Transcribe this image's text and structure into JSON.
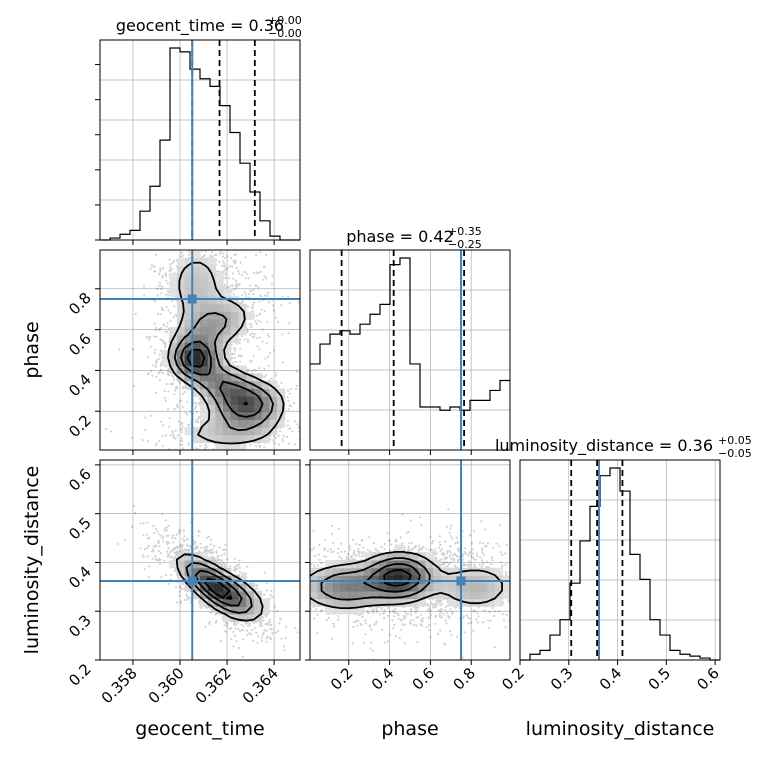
{
  "colors": {
    "truth": "#4682b4",
    "hist": "#000000",
    "quantile": "#000000",
    "grid": "#b0b0b0",
    "scatter": "#000000"
  },
  "chart_data": {
    "type": "corner",
    "parameters": [
      "geocent_time",
      "phase",
      "luminosity_distance"
    ],
    "axis_labels": [
      "geocent_time",
      "phase",
      "luminosity_distance"
    ],
    "titles": [
      {
        "param": "geocent_time",
        "prefix": "geocent_time = ",
        "value": "0.36",
        "up": "+0.00",
        "down": "−0.00"
      },
      {
        "param": "phase",
        "prefix": "phase = ",
        "value": "0.42",
        "up": "+0.35",
        "down": "−0.25"
      },
      {
        "param": "luminosity_distance",
        "prefix": "luminosity_distance = ",
        "value": "0.36",
        "up": "+0.05",
        "down": "−0.05"
      }
    ],
    "ranges": {
      "geocent_time": [
        0.3566,
        0.3651
      ],
      "phase": [
        0.01,
        0.99
      ],
      "luminosity_distance": [
        0.2,
        0.61
      ]
    },
    "ticks": {
      "geocent_time": {
        "values": [
          0.358,
          0.36,
          0.362,
          0.364
        ],
        "labels": [
          "0.358",
          "0.360",
          "0.362",
          "0.364"
        ]
      },
      "phase": {
        "values": [
          0.2,
          0.4,
          0.6,
          0.8
        ],
        "labels": [
          "0.2",
          "0.4",
          "0.6",
          "0.8"
        ]
      },
      "luminosity_distance": {
        "values": [
          0.2,
          0.3,
          0.4,
          0.5,
          0.6
        ],
        "labels": [
          "0.2",
          "0.3",
          "0.4",
          "0.5",
          "0.6"
        ]
      }
    },
    "truths": {
      "geocent_time": 0.36052,
      "phase": 0.75,
      "luminosity_distance": 0.362
    },
    "quantiles": {
      "geocent_time": [
        0.36052,
        0.36168,
        0.36318
      ],
      "phase": [
        0.165,
        0.42,
        0.765
      ],
      "luminosity_distance": [
        0.305,
        0.358,
        0.41
      ]
    },
    "histograms": {
      "geocent_time": {
        "edges_start": 0.3566,
        "bin_width": 0.000425,
        "counts": [
          0,
          1,
          3,
          5,
          15,
          28,
          52,
          100,
          98,
          89,
          84,
          80,
          70,
          56,
          40,
          25,
          10,
          2,
          0,
          0
        ]
      },
      "phase": {
        "edges_start": 0.01,
        "bin_width": 0.049,
        "counts": [
          26,
          32,
          35,
          36,
          35,
          38,
          41,
          44,
          56,
          58,
          26,
          13,
          13,
          12,
          13,
          12,
          15,
          15,
          18,
          21
        ]
      },
      "luminosity_distance": {
        "edges_start": 0.2,
        "bin_width": 0.0205,
        "counts": [
          0,
          3,
          5,
          13,
          21,
          40,
          62,
          80,
          96,
          100,
          88,
          55,
          42,
          21,
          13,
          5,
          3,
          2,
          1,
          0
        ]
      }
    },
    "grid": true
  }
}
